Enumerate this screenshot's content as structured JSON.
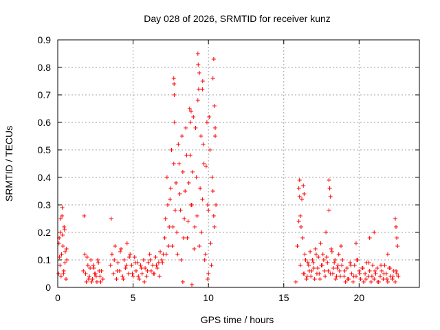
{
  "chart_data": {
    "type": "scatter",
    "title": "Day 028 of 2026, SRMTID for receiver kunz",
    "xlabel": "GPS time / hours",
    "ylabel": "SRMTID / TECUs",
    "xlim": [
      0,
      24
    ],
    "ylim": [
      0,
      0.9
    ],
    "xticks": [
      0,
      5,
      10,
      15,
      20
    ],
    "yticks": [
      0,
      0.1,
      0.2,
      0.3,
      0.4,
      0.5,
      0.6,
      0.7,
      0.8,
      0.9
    ],
    "xtick_labels": [
      "0",
      "5",
      "10",
      "15",
      "20"
    ],
    "ytick_labels": [
      "0",
      "0.1",
      "0.2",
      "0.3",
      "0.4",
      "0.5",
      "0.6",
      "0.7",
      "0.8",
      "0.9"
    ],
    "grid": true,
    "marker": "+",
    "color": "#ff0000",
    "series": [
      {
        "name": "SRMTID",
        "x": [
          0.05,
          0.1,
          0.15,
          0.2,
          0.25,
          0.3,
          0.35,
          0.4,
          0.45,
          0.5,
          0.55,
          0.6,
          0.08,
          0.18,
          0.28,
          0.38,
          0.48,
          0.58,
          0.12,
          0.22,
          0.32,
          0.42,
          1.7,
          1.8,
          1.9,
          2.0,
          2.1,
          2.2,
          2.3,
          2.4,
          2.5,
          2.6,
          2.7,
          2.8,
          2.9,
          3.0,
          1.75,
          1.85,
          1.95,
          2.05,
          2.15,
          2.25,
          2.35,
          2.45,
          2.55,
          2.65,
          2.75,
          2.85,
          3.5,
          3.6,
          3.7,
          3.8,
          3.9,
          4.0,
          4.1,
          4.2,
          4.3,
          4.4,
          4.5,
          4.6,
          4.7,
          4.8,
          4.9,
          5.0,
          5.1,
          5.2,
          5.3,
          5.4,
          5.5,
          5.6,
          5.7,
          5.8,
          5.9,
          6.0,
          6.1,
          6.2,
          6.3,
          6.4,
          6.5,
          6.6,
          6.7,
          6.8,
          6.9,
          7.0,
          3.55,
          3.75,
          3.95,
          4.15,
          4.35,
          4.55,
          4.75,
          4.95,
          5.15,
          5.35,
          5.55,
          5.75,
          5.95,
          6.15,
          6.35,
          6.55,
          6.75,
          6.95,
          7.1,
          7.2,
          7.3,
          7.4,
          7.5,
          7.6,
          7.7,
          7.8,
          7.9,
          8.0,
          8.1,
          8.2,
          8.3,
          8.4,
          8.5,
          8.6,
          8.7,
          8.8,
          8.9,
          9.0,
          9.1,
          9.2,
          9.3,
          9.4,
          9.5,
          9.6,
          9.7,
          9.8,
          9.9,
          10.0,
          10.1,
          10.2,
          10.3,
          10.4,
          10.5,
          7.15,
          7.25,
          7.35,
          7.45,
          7.55,
          7.65,
          7.75,
          7.85,
          7.95,
          8.05,
          8.15,
          8.25,
          8.35,
          8.45,
          8.55,
          8.65,
          8.75,
          8.85,
          8.95,
          9.05,
          9.15,
          9.25,
          9.35,
          9.45,
          9.55,
          9.65,
          9.75,
          9.85,
          9.95,
          10.05,
          10.15,
          10.25,
          10.35,
          10.45,
          7.7,
          7.72,
          7.74,
          8.8,
          8.85,
          9.3,
          9.32,
          9.4,
          9.6,
          9.62,
          10.3,
          10.35,
          10.4,
          10.45,
          8.3,
          8.9,
          9.95,
          10.0,
          15.8,
          15.9,
          16.0,
          16.1,
          16.2,
          16.3,
          16.4,
          16.5,
          16.6,
          16.7,
          16.8,
          16.9,
          17.0,
          17.1,
          17.2,
          17.3,
          17.4,
          17.5,
          17.6,
          17.7,
          17.8,
          17.9,
          18.0,
          18.1,
          18.2,
          18.3,
          18.4,
          18.5,
          18.6,
          18.7,
          18.8,
          18.9,
          16.05,
          16.15,
          16.25,
          16.35,
          16.45,
          16.55,
          16.65,
          16.75,
          16.85,
          16.95,
          17.05,
          17.15,
          17.25,
          17.35,
          17.45,
          17.55,
          17.65,
          17.75,
          17.85,
          17.95,
          18.05,
          18.15,
          18.25,
          18.35,
          18.45,
          18.55,
          18.65,
          18.75,
          18.85,
          16.0,
          16.05,
          16.1,
          16.3,
          16.35,
          18.0,
          18.05,
          18.1,
          19.0,
          19.1,
          19.2,
          19.3,
          19.4,
          19.5,
          19.6,
          19.7,
          19.8,
          19.9,
          20.0,
          20.1,
          20.2,
          20.3,
          20.4,
          20.5,
          20.6,
          20.7,
          20.8,
          20.9,
          21.0,
          21.1,
          21.2,
          21.3,
          21.4,
          21.5,
          21.6,
          21.7,
          21.8,
          21.9,
          22.0,
          22.1,
          22.2,
          22.3,
          22.4,
          22.5,
          22.6,
          19.05,
          19.25,
          19.45,
          19.65,
          19.85,
          20.05,
          20.25,
          20.45,
          20.65,
          20.85,
          21.05,
          21.25,
          21.45,
          21.65,
          21.85,
          22.05,
          22.25,
          22.45,
          19.8,
          20.7,
          21.0,
          21.9,
          22.4,
          22.45,
          22.5,
          22.55
        ],
        "y": [
          0.05,
          0.18,
          0.08,
          0.25,
          0.12,
          0.29,
          0.15,
          0.06,
          0.21,
          0.13,
          0.03,
          0.1,
          0.16,
          0.2,
          0.26,
          0.05,
          0.09,
          0.14,
          0.11,
          0.04,
          0.19,
          0.22,
          0.06,
          0.12,
          0.02,
          0.08,
          0.04,
          0.1,
          0.03,
          0.07,
          0.05,
          0.02,
          0.09,
          0.04,
          0.06,
          0.03,
          0.26,
          0.05,
          0.11,
          0.03,
          0.07,
          0.02,
          0.08,
          0.05,
          0.04,
          0.1,
          0.06,
          0.02,
          0.08,
          0.12,
          0.05,
          0.15,
          0.03,
          0.09,
          0.06,
          0.14,
          0.04,
          0.1,
          0.07,
          0.16,
          0.05,
          0.12,
          0.08,
          0.04,
          0.11,
          0.06,
          0.09,
          0.03,
          0.08,
          0.05,
          0.1,
          0.07,
          0.04,
          0.09,
          0.12,
          0.06,
          0.08,
          0.05,
          0.11,
          0.07,
          0.09,
          0.13,
          0.1,
          0.12,
          0.25,
          0.1,
          0.06,
          0.13,
          0.03,
          0.08,
          0.11,
          0.05,
          0.09,
          0.04,
          0.07,
          0.02,
          0.06,
          0.1,
          0.05,
          0.08,
          0.04,
          0.09,
          0.18,
          0.12,
          0.3,
          0.22,
          0.36,
          0.15,
          0.45,
          0.28,
          0.2,
          0.52,
          0.34,
          0.1,
          0.42,
          0.25,
          0.58,
          0.18,
          0.38,
          0.48,
          0.3,
          0.62,
          0.22,
          0.4,
          0.68,
          0.15,
          0.55,
          0.32,
          0.45,
          0.12,
          0.6,
          0.28,
          0.5,
          0.08,
          0.35,
          0.22,
          0.3,
          0.25,
          0.4,
          0.15,
          0.32,
          0.5,
          0.22,
          0.6,
          0.38,
          0.12,
          0.45,
          0.28,
          0.55,
          0.18,
          0.35,
          0.48,
          0.24,
          0.65,
          0.3,
          0.42,
          0.14,
          0.58,
          0.26,
          0.72,
          0.36,
          0.2,
          0.52,
          0.1,
          0.44,
          0.3,
          0.62,
          0.16,
          0.4,
          0.26,
          0.55,
          0.76,
          0.74,
          0.7,
          0.6,
          0.64,
          0.85,
          0.81,
          0.78,
          0.72,
          0.75,
          0.76,
          0.83,
          0.66,
          0.58,
          0.02,
          0.01,
          0.03,
          0.05,
          0.02,
          0.15,
          0.24,
          0.08,
          0.32,
          0.05,
          0.12,
          0.03,
          0.09,
          0.06,
          0.04,
          0.1,
          0.07,
          0.14,
          0.05,
          0.11,
          0.03,
          0.08,
          0.12,
          0.06,
          0.2,
          0.09,
          0.28,
          0.05,
          0.13,
          0.07,
          0.1,
          0.04,
          0.08,
          0.06,
          0.15,
          0.1,
          0.39,
          0.22,
          0.18,
          0.05,
          0.1,
          0.04,
          0.08,
          0.13,
          0.06,
          0.09,
          0.03,
          0.12,
          0.07,
          0.05,
          0.16,
          0.08,
          0.1,
          0.04,
          0.11,
          0.06,
          0.36,
          0.14,
          0.05,
          0.09,
          0.03,
          0.07,
          0.12,
          0.04,
          0.08,
          0.36,
          0.33,
          0.26,
          0.37,
          0.34,
          0.39,
          0.36,
          0.33,
          0.04,
          0.02,
          0.07,
          0.03,
          0.09,
          0.05,
          0.02,
          0.08,
          0.04,
          0.1,
          0.06,
          0.03,
          0.07,
          0.02,
          0.05,
          0.09,
          0.04,
          0.06,
          0.02,
          0.08,
          0.03,
          0.05,
          0.07,
          0.02,
          0.04,
          0.06,
          0.03,
          0.08,
          0.05,
          0.02,
          0.07,
          0.04,
          0.03,
          0.06,
          0.02,
          0.05,
          0.04,
          0.06,
          0.03,
          0.08,
          0.04,
          0.1,
          0.05,
          0.07,
          0.03,
          0.09,
          0.04,
          0.06,
          0.02,
          0.08,
          0.05,
          0.03,
          0.07,
          0.04,
          0.06,
          0.16,
          0.18,
          0.2,
          0.12,
          0.25,
          0.22,
          0.18,
          0.15
        ]
      }
    ]
  }
}
